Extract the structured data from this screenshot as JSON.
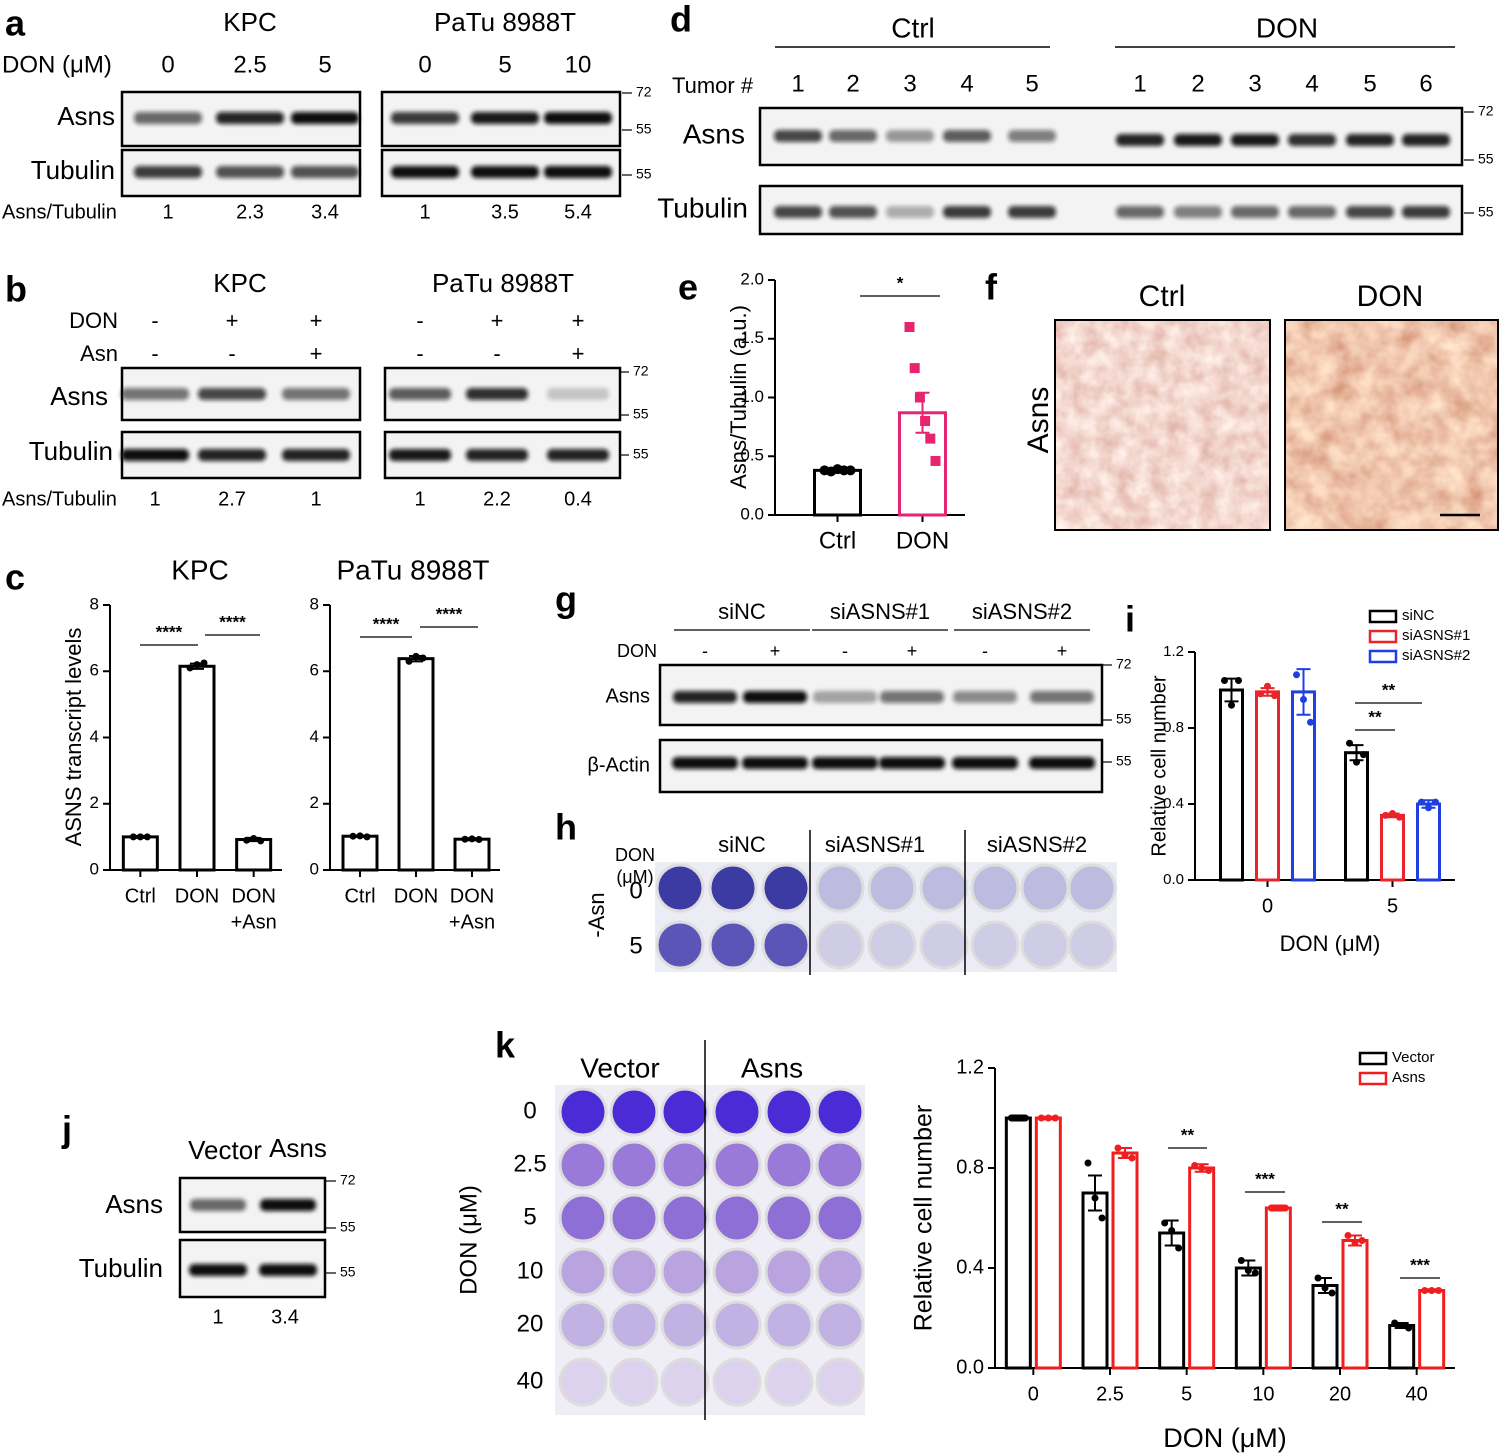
{
  "panel_labels": [
    "a",
    "b",
    "c",
    "d",
    "e",
    "f",
    "g",
    "h",
    "i",
    "j",
    "k"
  ],
  "a": {
    "cell_lines": [
      "KPC",
      "PaTu 8988T"
    ],
    "treatment_label": "DON (μM)",
    "lanes": [
      [
        0,
        2.5,
        5
      ],
      [
        0,
        5,
        10
      ]
    ],
    "rows": [
      "Asns",
      "Tubulin"
    ],
    "mw_markers": [
      72,
      55,
      55
    ],
    "ratio_label": "Asns/Tubulin",
    "ratios": [
      [
        1,
        2.3,
        3.4
      ],
      [
        1,
        3.5,
        5.4
      ]
    ]
  },
  "b": {
    "cell_lines": [
      "KPC",
      "PaTu 8988T"
    ],
    "treatments": [
      {
        "label": "DON",
        "signs": [
          [
            "-",
            "+",
            "+"
          ],
          [
            "-",
            "+",
            "+"
          ]
        ]
      },
      {
        "label": "Asn",
        "signs": [
          [
            "-",
            "-",
            "+"
          ],
          [
            "-",
            "-",
            "+"
          ]
        ]
      }
    ],
    "rows": [
      "Asns",
      "Tubulin"
    ],
    "mw_markers": [
      72,
      55,
      55
    ],
    "ratio_label": "Asns/Tubulin",
    "ratios": [
      [
        1,
        2.7,
        1
      ],
      [
        1,
        2.2,
        0.4
      ]
    ]
  },
  "d": {
    "groups": [
      "Ctrl",
      "DON"
    ],
    "lane_label": "Tumor #",
    "lanes": [
      [
        1,
        2,
        3,
        4,
        5
      ],
      [
        1,
        2,
        3,
        4,
        5,
        6
      ]
    ],
    "rows": [
      "Asns",
      "Tubulin"
    ],
    "mw_markers": [
      72,
      55,
      55
    ]
  },
  "f": {
    "conditions": [
      "Ctrl",
      "DON"
    ],
    "stain": "Asns"
  },
  "g": {
    "groups": [
      "siNC",
      "siASNS#1",
      "siASNS#2"
    ],
    "treatment_label": "DON",
    "signs": [
      "-",
      "+",
      "-",
      "+",
      "-",
      "+"
    ],
    "rows": [
      "Asns",
      "β-Actin"
    ],
    "mw_markers": [
      72,
      55,
      55
    ]
  },
  "h": {
    "dose_label": [
      "DON",
      "(μM)"
    ],
    "groups": [
      "siNC",
      "siASNS#1",
      "siASNS#2"
    ],
    "condition": "-Asn",
    "doses": [
      0,
      5
    ]
  },
  "j": {
    "lanes": [
      "Vector",
      "Asns"
    ],
    "rows": [
      "Asns",
      "Tubulin"
    ],
    "mw_markers": [
      72,
      55,
      55
    ],
    "ratios": [
      1,
      3.4
    ]
  },
  "k_plate": {
    "groups": [
      "Vector",
      "Asns"
    ],
    "dose_label": "DON (μM)",
    "doses": [
      0,
      2.5,
      5,
      10,
      20,
      40
    ]
  },
  "chart_data": [
    {
      "type": "bar",
      "title": "KPC",
      "ylabel": "ASNS transcript levels",
      "categories": [
        "Ctrl",
        "DON",
        [
          "DON",
          "+Asn"
        ]
      ],
      "ylim": [
        0,
        8
      ],
      "yticks": [
        0,
        2,
        4,
        6,
        8
      ],
      "series": [
        {
          "color": "#000000",
          "values": [
            1.0,
            6.15,
            0.92
          ],
          "errors": [
            0.03,
            0.08,
            0.05
          ],
          "points": [
            [
              1.0,
              1.0,
              1.0
            ],
            [
              6.1,
              6.2,
              6.25
            ],
            [
              0.9,
              0.95,
              0.88
            ]
          ]
        }
      ],
      "annotations": [
        "****",
        "****"
      ]
    },
    {
      "type": "bar",
      "title": "PaTu 8988T",
      "categories": [
        "Ctrl",
        "DON",
        [
          "DON",
          "+Asn"
        ]
      ],
      "ylim": [
        0,
        8
      ],
      "yticks": [
        0,
        2,
        4,
        6,
        8
      ],
      "series": [
        {
          "color": "#000000",
          "values": [
            1.02,
            6.38,
            0.93
          ],
          "errors": [
            0.02,
            0.08,
            0.03
          ],
          "points": [
            [
              1.02,
              1.03,
              1.0
            ],
            [
              6.3,
              6.45,
              6.4
            ],
            [
              0.93,
              0.94,
              0.92
            ]
          ]
        }
      ],
      "annotations": [
        "****",
        "****"
      ]
    },
    {
      "type": "bar",
      "ylabel": "Asns/Tubulin (a.u.)",
      "categories": [
        "Ctrl",
        "DON"
      ],
      "ylim": [
        0,
        2
      ],
      "yticks": [
        {
          "value": 0,
          "label": "0.0"
        },
        0.5,
        {
          "value": 1,
          "label": "1.0"
        },
        1.5,
        {
          "value": 2,
          "label": "2.0"
        }
      ],
      "series": [
        {
          "colors": [
            "#000000",
            "#e6246f"
          ],
          "markers": [
            "circle",
            "square"
          ],
          "values": [
            0.38,
            0.87
          ],
          "errors": [
            0.01,
            0.17
          ],
          "points": [
            [
              0.38,
              0.37,
              0.39,
              0.38,
              0.38
            ],
            [
              1.6,
              1.25,
              1.0,
              0.8,
              0.65,
              0.46
            ]
          ]
        }
      ],
      "annotations": [
        "*"
      ]
    },
    {
      "type": "bar",
      "ylabel": "Relative cell number",
      "xlabel": "DON (μM)",
      "categories": [
        "0",
        "5"
      ],
      "ylim": [
        0,
        1.2
      ],
      "yticks": [
        {
          "value": 0,
          "label": "0.0"
        },
        0.4,
        0.8,
        1.2
      ],
      "legend": "upper right",
      "series": [
        {
          "name": "siNC",
          "color": "#000000",
          "values": [
            1.0,
            0.67
          ],
          "errors": [
            0.06,
            0.04
          ],
          "points": [
            [
              1.05,
              0.92,
              1.05
            ],
            [
              0.72,
              0.62,
              0.66
            ]
          ]
        },
        {
          "name": "siASNS#1",
          "color": "#e8252a",
          "values": [
            0.99,
            0.34
          ],
          "errors": [
            0.02,
            0.01
          ],
          "points": [
            [
              0.98,
              1.02,
              0.97
            ],
            [
              0.34,
              0.35,
              0.33
            ]
          ]
        },
        {
          "name": "siASNS#2",
          "color": "#1f3fe0",
          "values": [
            0.99,
            0.4
          ],
          "errors": [
            0.12,
            0.02
          ],
          "points": [
            [
              1.08,
              0.95,
              0.83
            ],
            [
              0.41,
              0.38,
              0.41
            ]
          ]
        }
      ],
      "annotations": [
        "**",
        "**"
      ]
    },
    {
      "type": "bar",
      "ylabel": "Relative cell number",
      "xlabel": "DON (μM)",
      "categories": [
        "0",
        "2.5",
        "5",
        "10",
        "20",
        "40"
      ],
      "ylim": [
        0,
        1.2
      ],
      "yticks": [
        {
          "value": 0,
          "label": "0.0"
        },
        0.4,
        0.8,
        1.2
      ],
      "legend": "upper right",
      "series": [
        {
          "name": "Vector",
          "color": "#000000",
          "values": [
            1.0,
            0.7,
            0.54,
            0.4,
            0.33,
            0.17
          ],
          "errors": [
            0.01,
            0.07,
            0.05,
            0.03,
            0.03,
            0.01
          ],
          "points": [
            [
              1.0,
              1.0,
              1.0
            ],
            [
              0.82,
              0.68,
              0.6
            ],
            [
              0.58,
              0.55,
              0.48
            ],
            [
              0.43,
              0.39,
              0.38
            ],
            [
              0.36,
              0.32,
              0.3
            ],
            [
              0.18,
              0.17,
              0.16
            ]
          ]
        },
        {
          "name": "Asns",
          "color": "#f01e1e",
          "values": [
            1.0,
            0.86,
            0.8,
            0.64,
            0.51,
            0.31
          ],
          "errors": [
            0.005,
            0.02,
            0.015,
            0.01,
            0.02,
            0.005
          ],
          "points": [
            [
              1.0,
              1.0,
              1.0
            ],
            [
              0.88,
              0.85,
              0.84
            ],
            [
              0.81,
              0.8,
              0.79
            ],
            [
              0.64,
              0.64,
              0.64
            ],
            [
              0.53,
              0.5,
              0.51
            ],
            [
              0.31,
              0.31,
              0.31
            ]
          ]
        }
      ],
      "annotations": [
        "**",
        "***",
        "**",
        "***"
      ]
    }
  ]
}
